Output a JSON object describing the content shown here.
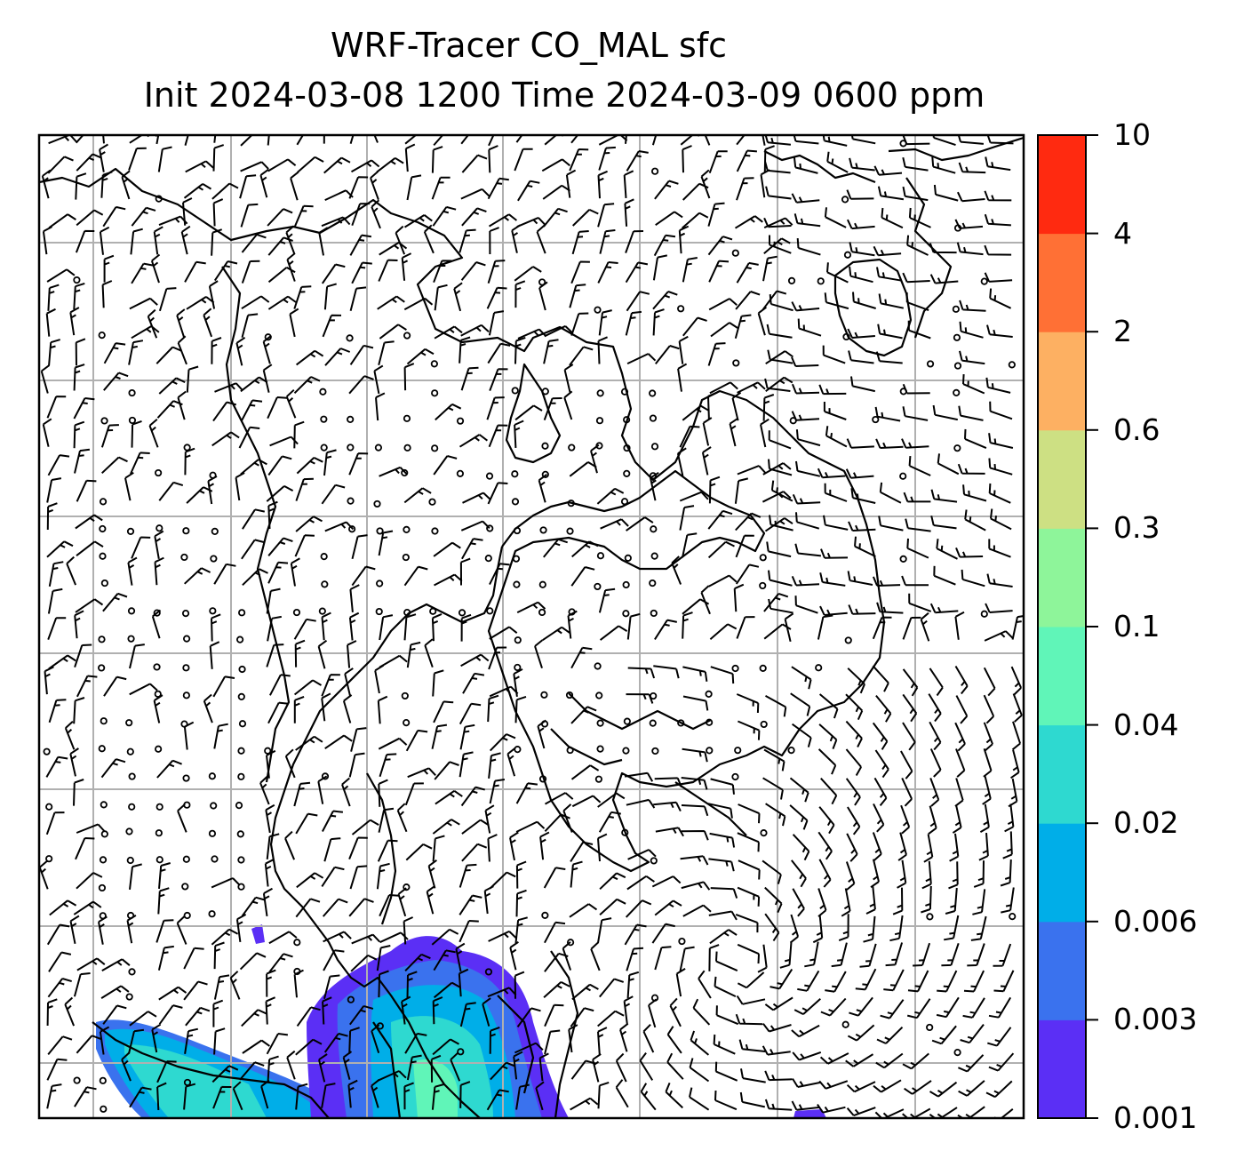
{
  "title": {
    "line1": "WRF-Tracer CO_MAL sfc",
    "line2": "Init 2024-03-08 1200 Time 2024-03-09 0600 ppm"
  },
  "colorbar": {
    "tick_labels": [
      "10",
      "4",
      "2",
      "0.6",
      "0.3",
      "0.1",
      "0.04",
      "0.02",
      "0.006",
      "0.003",
      "0.001"
    ],
    "bands_bottom_to_top": [
      {
        "range": "0.001-0.003",
        "color": "#5b2ff5"
      },
      {
        "range": "0.003-0.006",
        "color": "#3a72ee"
      },
      {
        "range": "0.006-0.02",
        "color": "#00aee8"
      },
      {
        "range": "0.02-0.04",
        "color": "#2ed9d0"
      },
      {
        "range": "0.04-0.1",
        "color": "#60f5b8"
      },
      {
        "range": "0.1-0.3",
        "color": "#8ef59a"
      },
      {
        "range": "0.3-0.6",
        "color": "#cde083"
      },
      {
        "range": "0.6-2",
        "color": "#fdb062"
      },
      {
        "range": "2-4",
        "color": "#ff7035"
      },
      {
        "range": "4-10",
        "color": "#ff2a10"
      }
    ]
  },
  "map": {
    "layers": [
      "coastlines",
      "gridlines",
      "wind-barbs",
      "co-tracer-fill"
    ]
  }
}
